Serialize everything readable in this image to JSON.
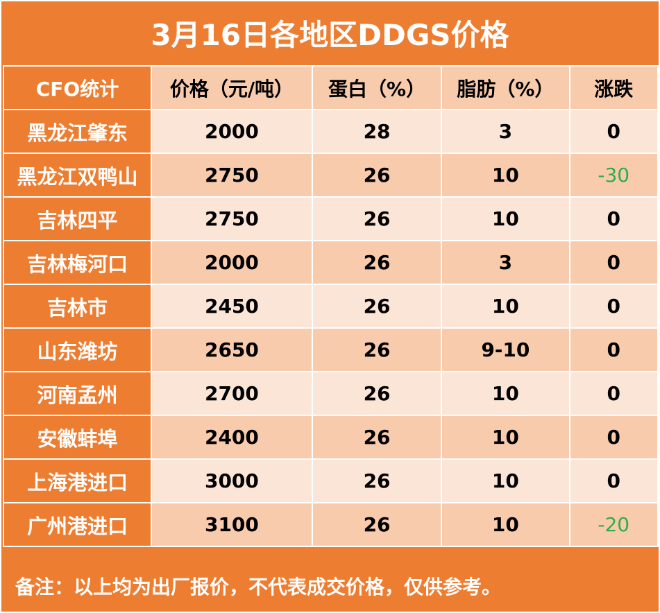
{
  "title": "3月16日各地区DDGS价格",
  "headers": [
    "CFO统计",
    "价格（元/吨）",
    "蛋白（%）",
    "脂肪（%）",
    "涨跌"
  ],
  "rows": [
    {
      "region": "黑龙江肇东",
      "price": "2000",
      "protein": "28",
      "fat": "3",
      "change": "0"
    },
    {
      "region": "黑龙江双鸭山",
      "price": "2750",
      "protein": "26",
      "fat": "10",
      "change": "-30"
    },
    {
      "region": "吉林四平",
      "price": "2750",
      "protein": "26",
      "fat": "10",
      "change": "0"
    },
    {
      "region": "吉林梅河口",
      "price": "2000",
      "protein": "26",
      "fat": "3",
      "change": "0"
    },
    {
      "region": "吉林市",
      "price": "2450",
      "protein": "26",
      "fat": "10",
      "change": "0"
    },
    {
      "region": "山东潍坊",
      "price": "2650",
      "protein": "26",
      "fat": "9-10",
      "change": "0"
    },
    {
      "region": "河南孟州",
      "price": "2700",
      "protein": "26",
      "fat": "10",
      "change": "0"
    },
    {
      "region": "安徽蚌埠",
      "price": "2400",
      "protein": "26",
      "fat": "10",
      "change": "0"
    },
    {
      "region": "上海港进口",
      "price": "3000",
      "protein": "26",
      "fat": "10",
      "change": "0"
    },
    {
      "region": "广州港进口",
      "price": "3100",
      "protein": "26",
      "fat": "10",
      "change": "-20"
    }
  ],
  "note": "备注：以上均为出厂报价，不代表成交价格，仅供参考。",
  "colors": {
    "header_orange": "#ED7D31",
    "light_cell": "#FBE5D6",
    "dark_cell": "#F8CBAD",
    "negative_green": "#2EAD4B"
  }
}
